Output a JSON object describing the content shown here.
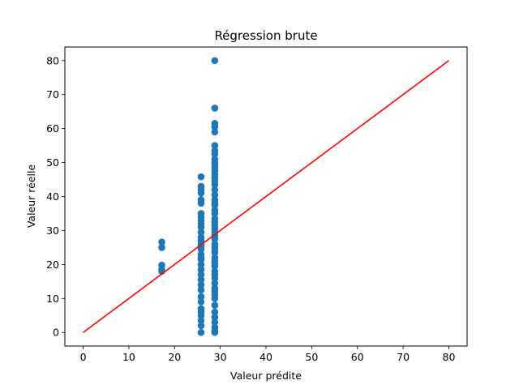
{
  "chart_data": {
    "type": "scatter",
    "title": "Régression brute",
    "xlabel": "Valeur prédite",
    "ylabel": "Valeur réelle",
    "xlim": [
      -4,
      84
    ],
    "ylim": [
      -4,
      84
    ],
    "xticks": [
      0,
      10,
      20,
      30,
      40,
      50,
      60,
      70,
      80
    ],
    "yticks": [
      0,
      10,
      20,
      30,
      40,
      50,
      60,
      70,
      80
    ],
    "grid": false,
    "colors": {
      "points": "#1f77b4",
      "line": "#ff0000"
    },
    "series": [
      {
        "type": "scatter",
        "x": [
          17.2,
          17.2,
          17.2,
          17.2,
          17.2,
          25.8,
          25.8,
          25.8,
          25.8,
          25.8,
          25.8,
          25.8,
          25.8,
          25.8,
          25.8,
          25.8,
          25.8,
          25.8,
          25.8,
          25.8,
          25.8,
          25.8,
          25.8,
          25.8,
          25.8,
          25.8,
          25.8,
          25.8,
          25.8,
          25.8,
          25.8,
          25.8,
          25.8,
          25.8,
          25.8,
          25.8,
          25.8,
          25.8,
          25.8,
          28.8,
          28.8,
          28.8,
          28.8,
          28.8,
          28.8,
          28.8,
          28.8,
          28.8,
          28.8,
          28.8,
          28.8,
          28.8,
          28.8,
          28.8,
          28.8,
          28.8,
          28.8,
          28.8,
          28.8,
          28.8,
          28.8,
          28.8,
          28.8,
          28.8,
          28.8,
          28.8,
          28.8,
          28.8,
          28.8,
          28.8,
          28.8,
          28.8,
          28.8,
          28.8,
          28.8,
          28.8,
          28.8,
          28.8,
          28.8,
          28.8,
          28.8,
          28.8,
          28.8,
          28.8,
          28.8,
          28.8,
          28.8,
          28.8,
          28.8,
          28.8,
          28.8,
          28.8,
          28.8
        ],
        "y": [
          26.6,
          25.0,
          19.8,
          18.5,
          18.0,
          0.0,
          2.0,
          3.5,
          5.0,
          6.0,
          7.0,
          12.5,
          14.0,
          15.5,
          17.0,
          18.5,
          20.0,
          21.5,
          23.0,
          24.5,
          26.0,
          27.0,
          28.0,
          29.5,
          31.0,
          32.0,
          33.0,
          34.0,
          35.0,
          38.0,
          39.0,
          41.0,
          42.0,
          43.0,
          45.8,
          9.0,
          10.5,
          22.0,
          25.5,
          0.0,
          0.5,
          3.0,
          6.0,
          10.0,
          13.0,
          14.5,
          16.0,
          17.0,
          18.0,
          19.5,
          20.5,
          22.0,
          23.5,
          25.0,
          26.0,
          27.5,
          28.5,
          29.5,
          30.5,
          31.5,
          32.5,
          33.5,
          36.0,
          37.5,
          39.0,
          40.5,
          42.0,
          43.5,
          44.5,
          45.5,
          46.5,
          47.5,
          48.5,
          49.5,
          51.0,
          52.5,
          53.5,
          55.0,
          59.0,
          60.5,
          61.5,
          66.0,
          80.0,
          35.0,
          24.0,
          12.0,
          8.0,
          21.0,
          38.0,
          50.0,
          1.5,
          4.5,
          11.0
        ]
      },
      {
        "type": "line",
        "x": [
          0,
          80
        ],
        "y": [
          0,
          80
        ]
      }
    ]
  }
}
